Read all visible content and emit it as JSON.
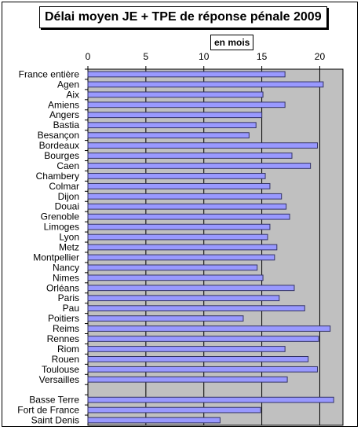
{
  "chart_data": {
    "type": "bar",
    "orientation": "horizontal",
    "title": "Délai moyen JE + TPE de réponse pénale 2009",
    "unit_label": "en mois",
    "xlim": [
      0,
      22
    ],
    "x_ticks": [
      0,
      5,
      10,
      15,
      20
    ],
    "grid": true,
    "colors": {
      "bar_fill": "#9999ff",
      "bar_stroke": "#333366",
      "plot_background": "#c0c0c0"
    },
    "categories": [
      "France entière",
      "Agen",
      "Aix",
      "Amiens",
      "Angers",
      "Bastia",
      "Besançon",
      "Bordeaux",
      "Bourges",
      "Caen",
      "Chambery",
      "Colmar",
      "Dijon",
      "Douai",
      "Grenoble",
      "Limoges",
      "Lyon",
      "Metz",
      "Montpellier",
      "Nancy",
      "Nimes",
      "Orléans",
      "Paris",
      "Pau",
      "Poitiers",
      "Reims",
      "Rennes",
      "Riom",
      "Rouen",
      "Toulouse",
      "Versailles",
      "",
      "Basse Terre",
      "Fort de France",
      "Saint Denis"
    ],
    "values": [
      17.0,
      20.3,
      15.1,
      17.0,
      15.0,
      14.5,
      13.9,
      19.8,
      17.6,
      19.2,
      15.3,
      15.7,
      16.7,
      17.1,
      17.4,
      15.7,
      15.5,
      16.3,
      16.1,
      14.6,
      15.1,
      17.8,
      16.5,
      18.7,
      13.4,
      20.9,
      19.9,
      17.0,
      19.0,
      19.8,
      17.2,
      null,
      21.2,
      14.9,
      11.4
    ]
  }
}
